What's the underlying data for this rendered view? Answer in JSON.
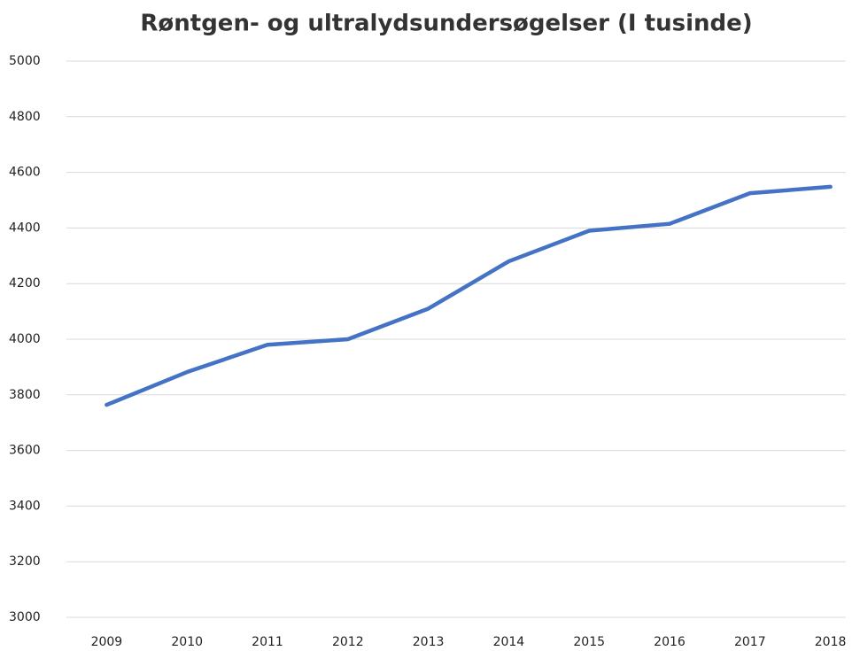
{
  "chart_data": {
    "type": "line",
    "title": "Røntgen- og ultralydsundersøgelser (I tusinde)",
    "categories": [
      "2009",
      "2010",
      "2011",
      "2012",
      "2013",
      "2014",
      "2015",
      "2016",
      "2017",
      "2018"
    ],
    "values": [
      3764,
      3882,
      3980,
      4000,
      4110,
      4280,
      4390,
      4415,
      4525,
      4548
    ],
    "color": "#4472c4",
    "ylim": [
      3000,
      5000
    ],
    "yticks": [
      3000,
      3200,
      3400,
      3600,
      3800,
      4000,
      4200,
      4400,
      4600,
      4800,
      5000
    ],
    "grid": true
  }
}
